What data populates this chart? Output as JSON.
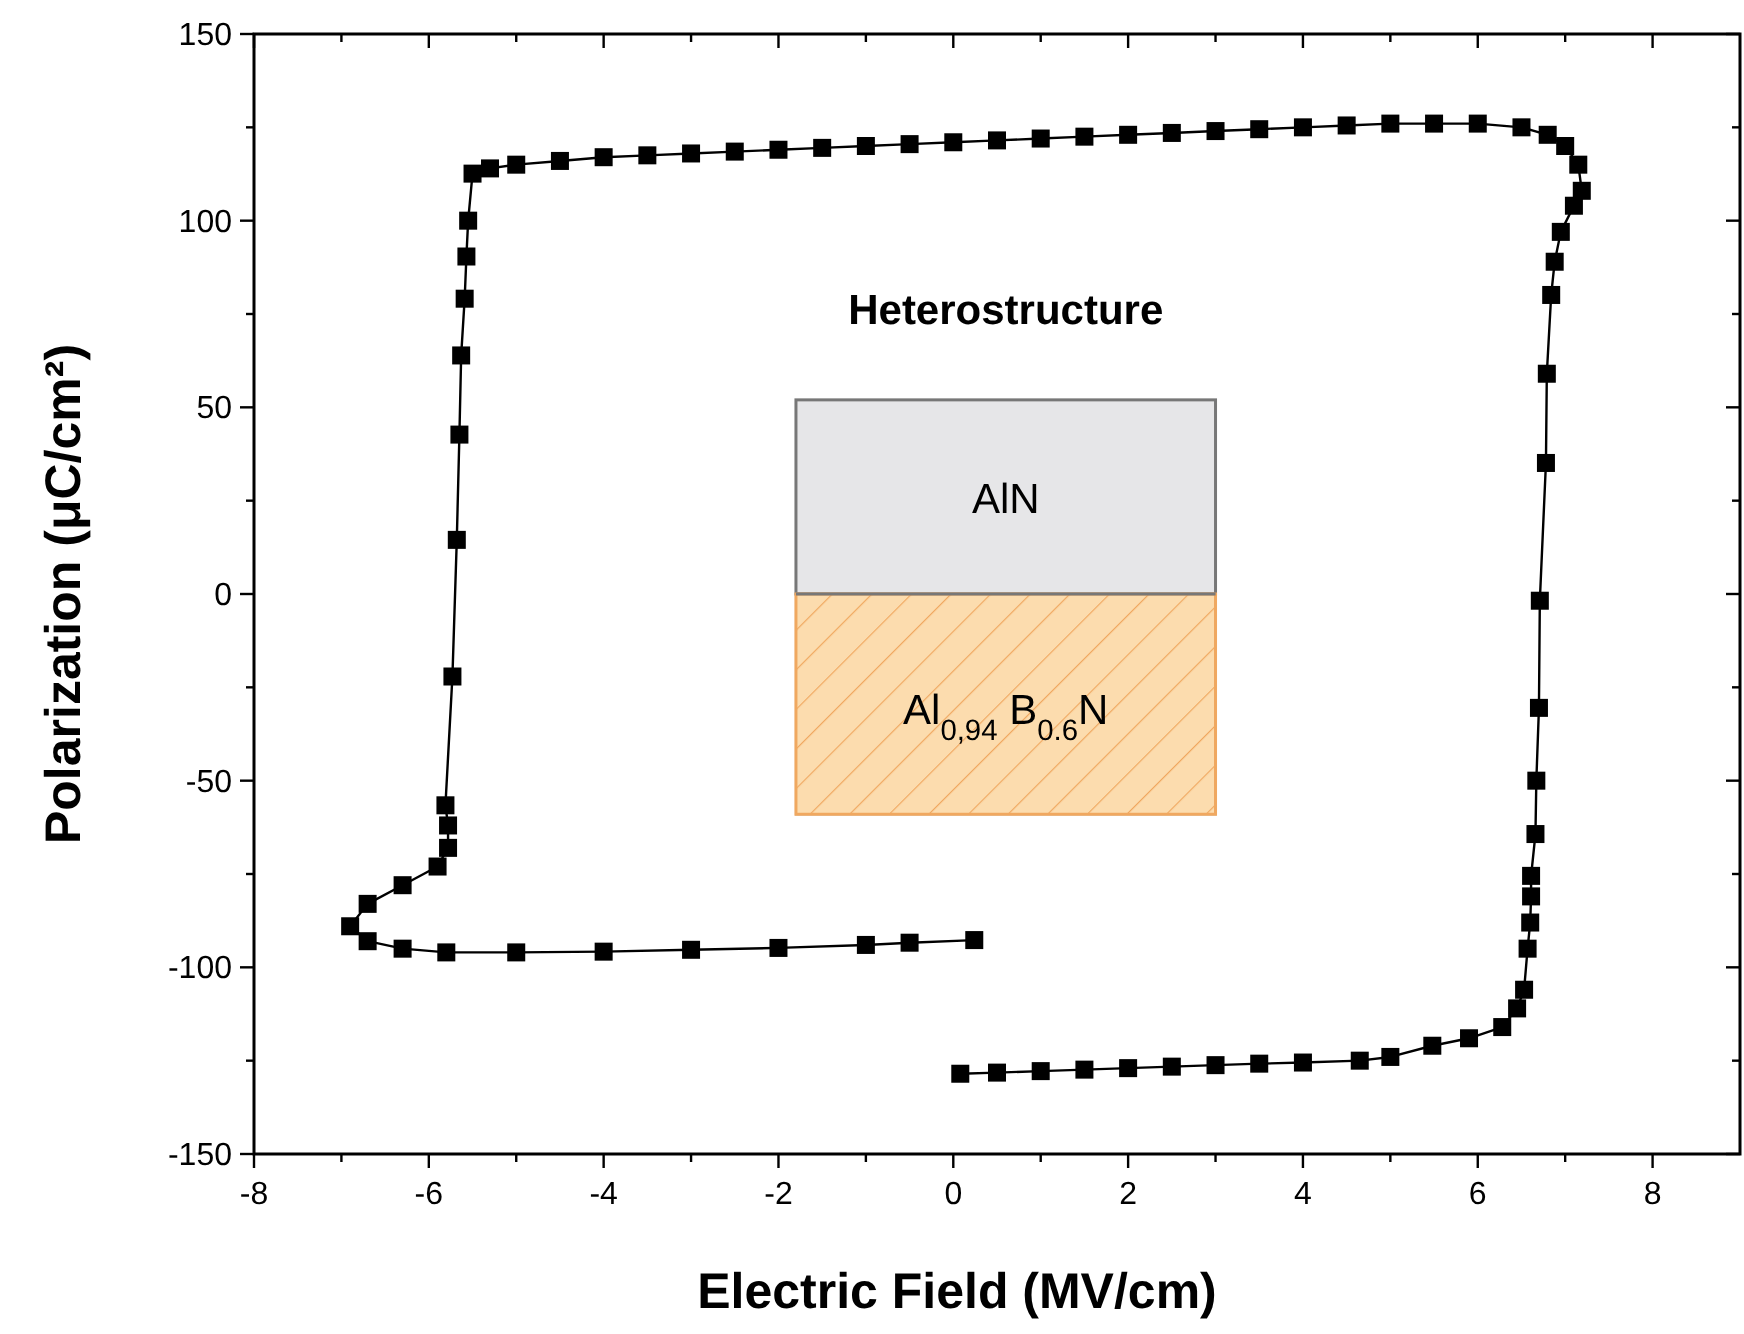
{
  "chart_data": {
    "type": "line",
    "xlabel": "Electric Field (MV/cm)",
    "ylabel": "Polarization (μC/cm²)",
    "xlim": [
      -8,
      9
    ],
    "ylim": [
      -150,
      150
    ],
    "xticks": [
      -8,
      {
        "value": -7,
        "label": null
      },
      -6,
      {
        "value": -5,
        "label": null
      },
      -4,
      {
        "value": -3,
        "label": null
      },
      -2,
      {
        "value": -1,
        "label": null
      },
      0,
      {
        "value": 1,
        "label": null
      },
      2,
      {
        "value": 3,
        "label": null
      },
      4,
      {
        "value": 5,
        "label": null
      },
      6,
      {
        "value": 7,
        "label": null
      },
      8
    ],
    "yticks": [
      -150,
      {
        "value": -125,
        "label": null
      },
      -100,
      {
        "value": -75,
        "label": null
      },
      -50,
      {
        "value": -25,
        "label": null
      },
      0,
      {
        "value": 25,
        "label": null
      },
      50,
      {
        "value": 75,
        "label": null
      },
      100,
      {
        "value": 125,
        "label": null
      },
      150
    ],
    "marker": "square",
    "line_style": "solid",
    "grid": false,
    "annotations": [
      "Heterostructure",
      "AlN",
      "Al$_{0,94}$ B$_{0.6}$N"
    ],
    "series": [
      {
        "color": "#000000",
        "x": [
          0.08,
          0.5,
          1,
          1.5,
          2,
          2.5,
          3,
          3.5,
          4,
          4.65,
          5,
          5.48,
          5.9,
          6.28,
          6.45,
          6.53,
          6.57,
          6.6,
          6.61,
          6.61,
          6.66,
          6.67,
          6.7,
          6.71,
          6.78,
          6.79,
          6.84,
          6.88,
          6.95,
          7.1,
          7.19,
          7.15,
          7.0,
          6.8,
          6.5,
          6,
          5.5,
          5,
          4.5,
          4,
          3.5,
          3,
          2.5,
          2,
          1.5,
          1,
          0.5,
          0,
          -0.5,
          -1,
          -1.5,
          -2,
          -2.5,
          -3,
          -3.5,
          -4,
          -4.5,
          -5,
          -5.3,
          -5.5,
          -5.55,
          -5.57,
          -5.59,
          -5.63,
          -5.65,
          -5.68,
          -5.73,
          -5.81,
          -5.78,
          -5.78,
          -5.9,
          -6.3,
          -6.7,
          -6.9,
          -6.7,
          -6.3,
          -5.8,
          -5,
          -4,
          -3,
          -2,
          -1,
          -0.5,
          0.24
        ],
        "values": [
          -128.5,
          -128.2,
          -127.8,
          -127.4,
          -127,
          -126.6,
          -126.2,
          -125.8,
          -125.5,
          -125,
          -124,
          -121,
          -119,
          -116,
          -111,
          -106,
          -95,
          -88,
          -81,
          -75.5,
          -64.3,
          -50,
          -30.5,
          -1.8,
          35.1,
          59,
          80.1,
          89,
          97,
          104,
          108,
          115,
          120,
          123,
          125,
          126,
          126,
          126,
          125.5,
          125,
          124.5,
          124,
          123.5,
          123,
          122.5,
          122,
          121.5,
          121,
          120.5,
          120,
          119.5,
          119,
          118.5,
          118,
          117.5,
          117,
          116,
          115,
          114,
          112.6,
          100,
          90.4,
          79.1,
          63.9,
          42.7,
          14.5,
          -22.1,
          -56.6,
          -62,
          -68,
          -73,
          -78,
          -83,
          -89,
          -93,
          -95,
          -96,
          -96,
          -95.8,
          -95.3,
          -94.8,
          -94,
          -93.4,
          -92.7
        ]
      }
    ]
  }
}
